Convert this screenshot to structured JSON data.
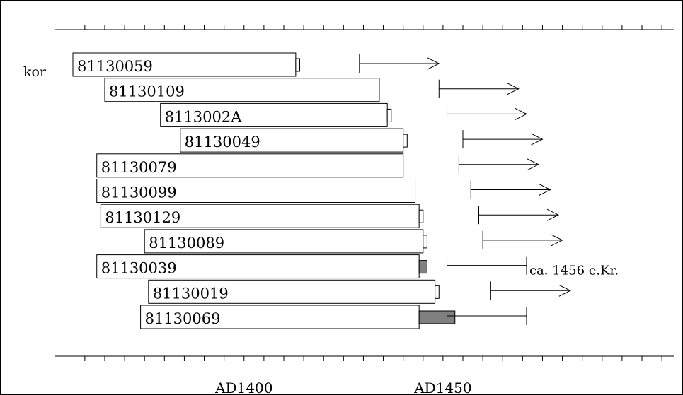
{
  "chart_data": {
    "type": "bar",
    "orientation": "horizontal-range",
    "row_group_label": "kor",
    "x_axis": {
      "min": 1357,
      "max": 1508,
      "tick_step": 5,
      "tick_labels": [
        {
          "value": 1400,
          "label": "AD1400"
        },
        {
          "value": 1450,
          "label": "AD1450"
        }
      ]
    },
    "samples": [
      {
        "id": "81130059",
        "start": 1357,
        "end": 1413,
        "sapwood_end": 1414,
        "sapwood_fill": "white",
        "arrow_from": 1429,
        "arrow_to": 1449,
        "arrow_type": "arrow"
      },
      {
        "id": "81130109",
        "start": 1365,
        "end": 1434,
        "sapwood_end": null,
        "sapwood_fill": null,
        "arrow_from": 1449,
        "arrow_to": 1469,
        "arrow_type": "arrow"
      },
      {
        "id": "8113002A",
        "start": 1379,
        "end": 1436,
        "sapwood_end": 1437,
        "sapwood_fill": "white",
        "arrow_from": 1451,
        "arrow_to": 1471,
        "arrow_type": "arrow"
      },
      {
        "id": "81130049",
        "start": 1384,
        "end": 1440,
        "sapwood_end": 1441,
        "sapwood_fill": "white",
        "arrow_from": 1455,
        "arrow_to": 1475,
        "arrow_type": "arrow"
      },
      {
        "id": "81130079",
        "start": 1363,
        "end": 1440,
        "sapwood_end": null,
        "sapwood_fill": null,
        "arrow_from": 1454,
        "arrow_to": 1474,
        "arrow_type": "arrow"
      },
      {
        "id": "81130099",
        "start": 1363,
        "end": 1443,
        "sapwood_end": null,
        "sapwood_fill": null,
        "arrow_from": 1457,
        "arrow_to": 1477,
        "arrow_type": "arrow"
      },
      {
        "id": "81130129",
        "start": 1364,
        "end": 1444,
        "sapwood_end": 1445,
        "sapwood_fill": "white",
        "arrow_from": 1459,
        "arrow_to": 1479,
        "arrow_type": "arrow"
      },
      {
        "id": "81130089",
        "start": 1375,
        "end": 1445,
        "sapwood_end": 1446,
        "sapwood_fill": "white",
        "arrow_from": 1460,
        "arrow_to": 1480,
        "arrow_type": "arrow"
      },
      {
        "id": "81130039",
        "start": 1363,
        "end": 1444,
        "sapwood_end": 1446,
        "sapwood_fill": "#808080",
        "arrow_from": 1451,
        "arrow_to": 1471,
        "arrow_type": "bar",
        "annotation": "ca. 1456 e.Kr."
      },
      {
        "id": "81130019",
        "start": 1376,
        "end": 1448,
        "sapwood_end": 1449,
        "sapwood_fill": "white",
        "arrow_from": 1462,
        "arrow_to": 1482,
        "arrow_type": "arrow"
      },
      {
        "id": "81130069",
        "start": 1374,
        "end": 1444,
        "sapwood_end": 1453,
        "sapwood_fill": "#808080",
        "arrow_from": 1451,
        "arrow_to": 1471,
        "arrow_type": "bar"
      }
    ],
    "legend": null,
    "grid": false
  }
}
